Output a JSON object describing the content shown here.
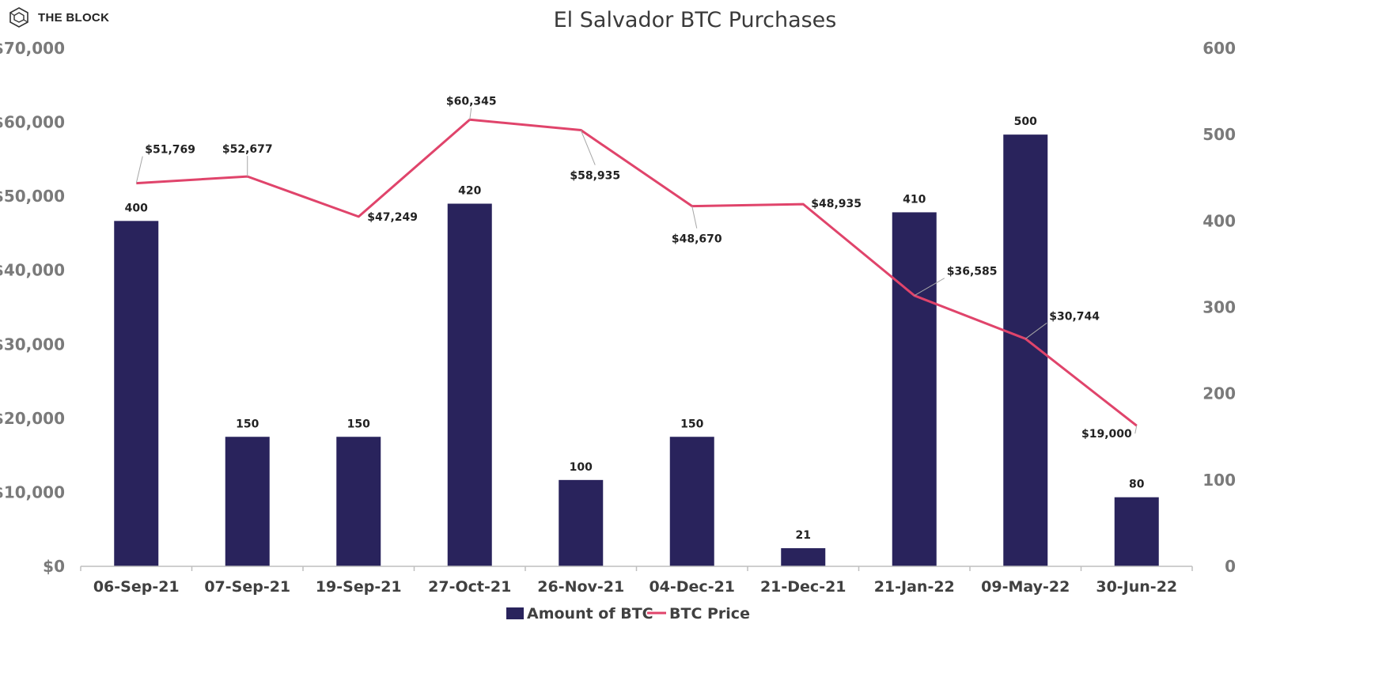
{
  "brand": {
    "name": "THE BLOCK"
  },
  "chart_data": {
    "type": "bar",
    "title": "El Salvador BTC Purchases",
    "categories": [
      "06-Sep-21",
      "07-Sep-21",
      "19-Sep-21",
      "27-Oct-21",
      "26-Nov-21",
      "04-Dec-21",
      "21-Dec-21",
      "21-Jan-22",
      "09-May-22",
      "30-Jun-22"
    ],
    "series": [
      {
        "name": "Amount of BTC",
        "type": "bar",
        "axis": "right",
        "color": "#29235c",
        "values": [
          400,
          150,
          150,
          420,
          100,
          150,
          21,
          410,
          500,
          80
        ],
        "labels": [
          "400",
          "150",
          "150",
          "420",
          "100",
          "150",
          "21",
          "410",
          "500",
          "80"
        ]
      },
      {
        "name": "BTC Price",
        "type": "line",
        "axis": "left",
        "color": "#e0446b",
        "values": [
          51769,
          52677,
          47249,
          60345,
          58935,
          48670,
          48935,
          36585,
          30744,
          19000
        ],
        "labels": [
          "$51,769",
          "$52,677",
          "$47,249",
          "$60,345",
          "$58,935",
          "$48,670",
          "$48,935",
          "$36,585",
          "$30,744",
          "$19,000"
        ]
      }
    ],
    "left_axis": {
      "range": [
        0,
        70000
      ],
      "ticks": [
        0,
        10000,
        20000,
        30000,
        40000,
        50000,
        60000,
        70000
      ],
      "tick_labels": [
        "$0",
        "$10,000",
        "$20,000",
        "$30,000",
        "$40,000",
        "$50,000",
        "$60,000",
        "$70,000"
      ]
    },
    "right_axis": {
      "range": [
        0,
        600
      ],
      "ticks": [
        0,
        100,
        200,
        300,
        400,
        500,
        600
      ],
      "tick_labels": [
        "0",
        "100",
        "200",
        "300",
        "400",
        "500",
        "600"
      ]
    },
    "legend": [
      "Amount of BTC",
      "BTC Price"
    ],
    "legend_position": "bottom",
    "grid": false
  }
}
